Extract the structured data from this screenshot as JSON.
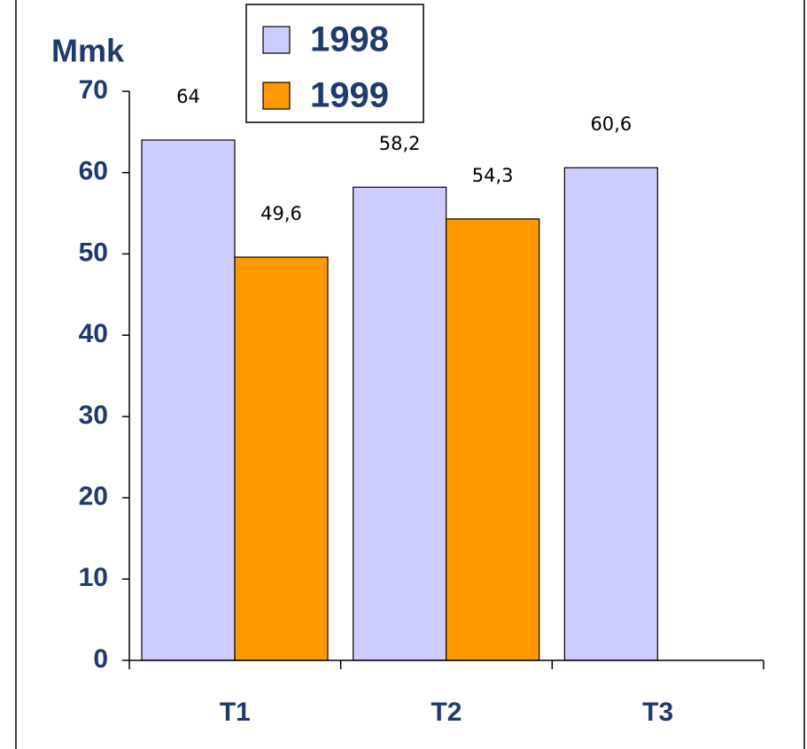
{
  "chart_data": {
    "type": "bar",
    "y_label": "Mmk",
    "categories": [
      "T1",
      "T2",
      "T3"
    ],
    "series": [
      {
        "name": "1998",
        "color": "#ccccff",
        "values": [
          64,
          58.2,
          60.6
        ],
        "value_labels": [
          "64",
          "58,2",
          "60,6"
        ]
      },
      {
        "name": "1999",
        "color": "#ff9900",
        "values": [
          49.6,
          54.3,
          null
        ],
        "value_labels": [
          "49,6",
          "54,3",
          null
        ]
      }
    ],
    "ylim": [
      0,
      70
    ],
    "yticks": [
      0,
      10,
      20,
      30,
      40,
      50,
      60,
      70
    ]
  }
}
